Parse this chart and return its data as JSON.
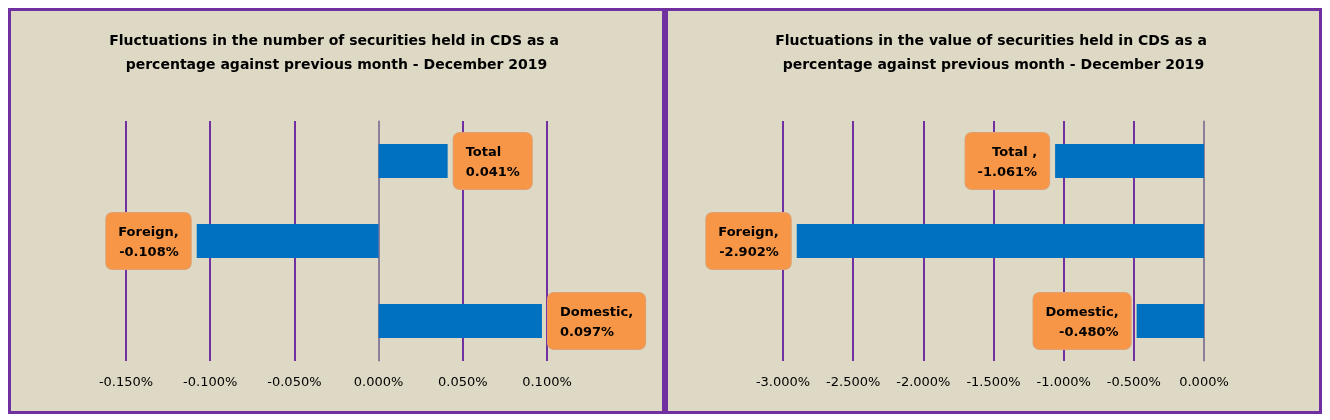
{
  "chart_data": [
    {
      "type": "bar",
      "orientation": "horizontal",
      "title": "Fluctuations in the number of securities held in CDS as a percentage against previous month - December 2019",
      "categories": [
        null,
        null,
        null
      ],
      "values": [
        0.041,
        -0.108,
        0.097
      ],
      "value_labels": [
        "Total\n0.041%",
        "Foreign,\n-0.108%",
        "Domestic,\n0.097%"
      ],
      "color": "#0070c0",
      "xlim": [
        -0.15,
        0.1
      ],
      "xticks": [
        {
          "value": -0.15,
          "label": "-0.150%"
        },
        {
          "value": -0.1,
          "label": "-0.100%"
        },
        {
          "value": -0.05,
          "label": "-0.050%"
        },
        {
          "value": 0,
          "label": "0.000%"
        },
        {
          "value": 0.05,
          "label": "0.050%"
        },
        {
          "value": 0.1,
          "label": "0.100%"
        }
      ],
      "grid": "x",
      "tick_labels": "x"
    },
    {
      "type": "bar",
      "orientation": "horizontal",
      "title": "Fluctuations in the value of securities held in CDS as a percentage against previous month - December 2019",
      "categories": [
        null,
        null,
        null
      ],
      "values": [
        -1.061,
        -2.902,
        -0.48
      ],
      "value_labels": [
        "Total ,\n-1.061%",
        "Foreign,\n-2.902%",
        "Domestic,\n-0.480%"
      ],
      "color": "#0070c0",
      "xlim": [
        -3,
        0
      ],
      "xticks": [
        {
          "value": -3,
          "label": "-3.000%"
        },
        {
          "value": -2.5,
          "label": "-2.500%"
        },
        {
          "value": -2,
          "label": "-2.000%"
        },
        {
          "value": -1.5,
          "label": "-1.500%"
        },
        {
          "value": -1,
          "label": "-1.000%"
        },
        {
          "value": -0.5,
          "label": "-0.500%"
        },
        {
          "value": 0,
          "label": "0.000%"
        }
      ],
      "grid": "x",
      "tick_labels": "x"
    }
  ]
}
